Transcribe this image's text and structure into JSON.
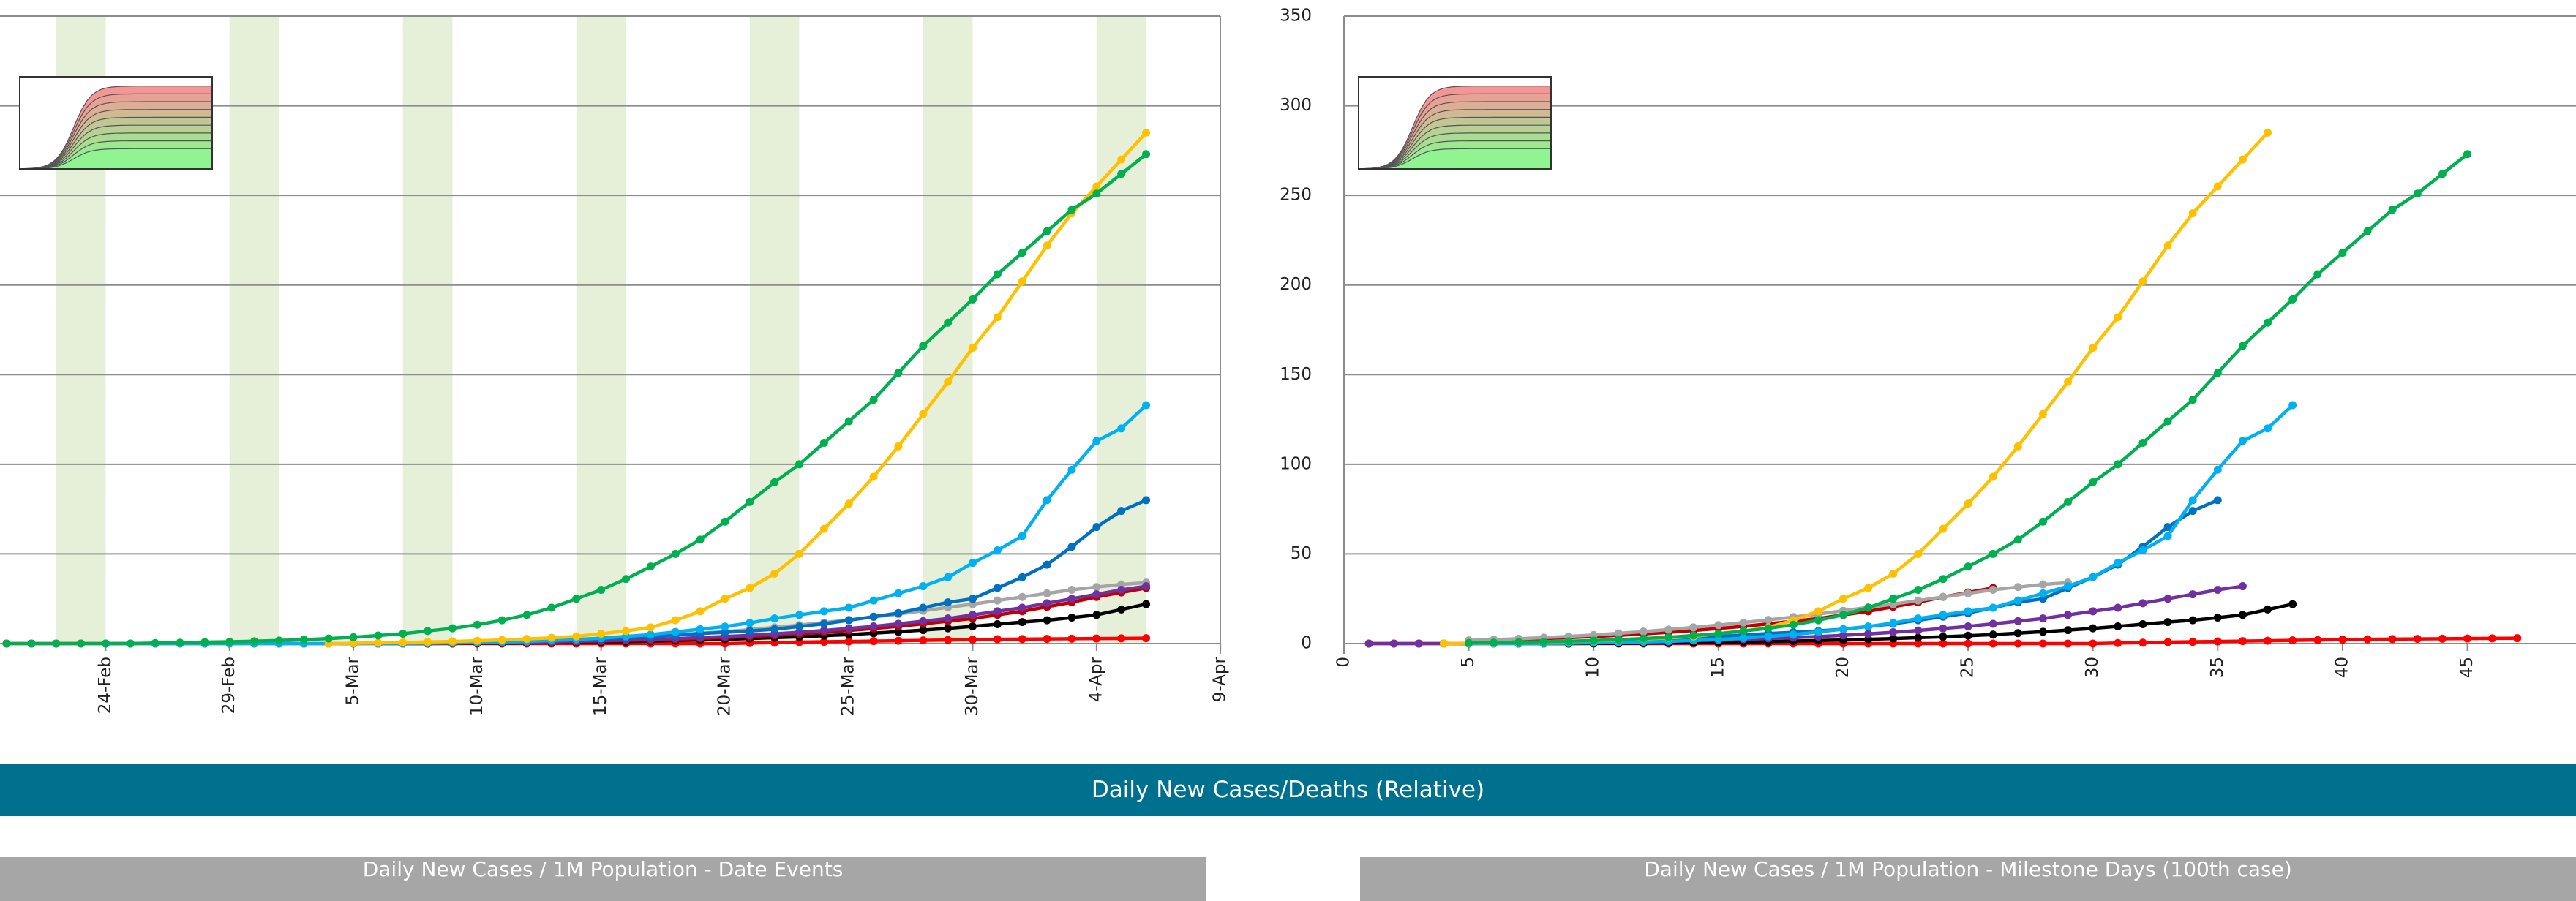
{
  "chart_data": [
    {
      "type": "line",
      "categories": [
        null,
        null,
        null,
        null,
        "24-Feb",
        null,
        null,
        null,
        null,
        "29-Feb",
        null,
        null,
        null,
        null,
        "5-Mar",
        null,
        null,
        null,
        null,
        "10-Mar",
        null,
        null,
        null,
        null,
        "15-Mar",
        null,
        null,
        null,
        null,
        "20-Mar",
        null,
        null,
        null,
        null,
        "25-Mar",
        null,
        null,
        null,
        null,
        "30-Mar",
        null,
        null,
        null,
        null,
        "4-Apr",
        null,
        null,
        null,
        null,
        "9-Apr"
      ],
      "ylim": [
        0,
        350
      ],
      "yticks": [
        0,
        50,
        100,
        150,
        200,
        250,
        300,
        350
      ],
      "grid": true,
      "series": [
        {
          "color": "#ff0000",
          "values": [
            0,
            0,
            0,
            0,
            0,
            0,
            0,
            0,
            0,
            0,
            0,
            0,
            0,
            0,
            0,
            0,
            0,
            0,
            0,
            0,
            0,
            0,
            0,
            0,
            0,
            0,
            0,
            0,
            0,
            0,
            0.3,
            0.5,
            0.8,
            1,
            1.2,
            1.4,
            1.6,
            1.8,
            2,
            2.2,
            2.4,
            2.5,
            2.6,
            2.7,
            2.8,
            2.9,
            3,
            null,
            null,
            null
          ]
        },
        {
          "color": "#000000",
          "values": [
            null,
            null,
            null,
            null,
            null,
            null,
            null,
            null,
            null,
            null,
            null,
            null,
            null,
            null,
            null,
            0,
            0,
            0,
            0.1,
            0.2,
            0.3,
            0.4,
            0.5,
            0.7,
            0.9,
            1.1,
            1.4,
            1.7,
            2,
            2.4,
            2.8,
            3.3,
            3.8,
            4.4,
            5,
            5.8,
            6.6,
            7.5,
            8.5,
            9.6,
            10.8,
            12,
            13,
            14.5,
            16,
            19,
            22,
            null,
            null,
            null
          ]
        },
        {
          "color": "#c00000",
          "values": [
            null,
            null,
            null,
            null,
            null,
            null,
            null,
            null,
            null,
            null,
            null,
            null,
            null,
            null,
            null,
            0,
            0,
            0.1,
            0.2,
            0.3,
            0.5,
            0.7,
            0.9,
            1.1,
            1.4,
            1.7,
            2,
            2.4,
            2.8,
            3.3,
            3.9,
            4.6,
            5.4,
            6.3,
            7.3,
            8.4,
            9.6,
            11,
            12.5,
            14,
            16,
            18,
            20.5,
            23,
            26,
            28.5,
            31,
            null,
            null,
            null
          ]
        },
        {
          "color": "#a5a5a5",
          "values": [
            null,
            null,
            null,
            null,
            null,
            null,
            null,
            null,
            null,
            null,
            null,
            null,
            null,
            null,
            null,
            0,
            0.2,
            0.4,
            0.6,
            0.8,
            1.1,
            1.4,
            1.8,
            2.2,
            2.7,
            3.3,
            4,
            4.8,
            5.7,
            6.7,
            7.8,
            9,
            10.3,
            11.7,
            13.2,
            14.8,
            16.5,
            18.3,
            20.2,
            22,
            24,
            26,
            28,
            30,
            31.5,
            33,
            34,
            null,
            null,
            null
          ]
        },
        {
          "color": "#7030a0",
          "values": [
            null,
            null,
            null,
            null,
            null,
            null,
            null,
            null,
            null,
            null,
            null,
            null,
            null,
            null,
            null,
            0,
            0.1,
            0.2,
            0.3,
            0.5,
            0.7,
            0.9,
            1.1,
            1.4,
            1.7,
            2,
            2.4,
            2.8,
            3.3,
            3.9,
            4.6,
            5.4,
            6.3,
            7.3,
            8.4,
            9.6,
            11,
            12.5,
            14,
            16,
            18,
            20,
            22.5,
            25,
            27.5,
            30,
            32,
            null,
            null,
            null
          ]
        },
        {
          "color": "#0070c0",
          "values": [
            null,
            null,
            null,
            null,
            null,
            null,
            null,
            null,
            null,
            null,
            null,
            null,
            null,
            null,
            null,
            0,
            0.2,
            0.4,
            0.6,
            0.8,
            1,
            1.3,
            1.7,
            2.2,
            2.8,
            3.4,
            4,
            4.8,
            5.6,
            6.3,
            7,
            8,
            9.5,
            11,
            13,
            15,
            17,
            20,
            23,
            25,
            31,
            37,
            44,
            54,
            65,
            74,
            80,
            null,
            null,
            null
          ]
        },
        {
          "color": "#00b0f0",
          "values": [
            null,
            null,
            null,
            null,
            0,
            0,
            0,
            0,
            0,
            0,
            0,
            0,
            0,
            0,
            0,
            0,
            0,
            0.2,
            0.4,
            0.6,
            0.9,
            1.2,
            1.7,
            2.3,
            3,
            4,
            5,
            6.5,
            8,
            9.5,
            11.5,
            14,
            16,
            18,
            20,
            24,
            28,
            32,
            37,
            45,
            52,
            60,
            80,
            97,
            113,
            120,
            133,
            null,
            null,
            null
          ]
        },
        {
          "color": "#ffc000",
          "values": [
            null,
            null,
            null,
            null,
            null,
            null,
            null,
            null,
            null,
            null,
            null,
            null,
            null,
            0,
            0.2,
            0.4,
            0.6,
            0.9,
            1.2,
            1.6,
            2,
            2.6,
            3.2,
            4,
            5.5,
            7,
            9,
            13,
            18,
            25,
            31,
            39,
            50,
            64,
            78,
            93,
            110,
            128,
            146,
            165,
            182,
            202,
            222,
            240,
            255,
            270,
            285,
            null,
            null,
            null
          ]
        },
        {
          "color": "#00b050",
          "values": [
            0,
            0,
            0,
            0,
            0,
            0,
            0.3,
            0.5,
            0.8,
            1,
            1.3,
            1.7,
            2.2,
            2.8,
            3.5,
            4.5,
            5.5,
            7,
            8.5,
            10.5,
            13,
            16,
            20,
            25,
            30,
            36,
            43,
            50,
            58,
            68,
            79,
            90,
            100,
            112,
            124,
            136,
            151,
            166,
            179,
            192,
            206,
            218,
            230,
            242,
            251,
            262,
            273,
            null,
            null,
            null
          ]
        }
      ]
    },
    {
      "type": "line",
      "x": [
        0,
        1,
        2,
        3,
        4,
        5,
        6,
        7,
        8,
        9,
        10,
        11,
        12,
        13,
        14,
        15,
        16,
        17,
        18,
        19,
        20,
        21,
        22,
        23,
        24,
        25,
        26,
        27,
        28,
        29,
        30,
        31,
        32,
        33,
        34,
        35,
        36,
        37,
        38,
        39,
        40,
        41,
        42,
        43,
        44,
        45,
        46,
        47
      ],
      "xlim": [
        0,
        49
      ],
      "xticks": [
        0,
        5,
        10,
        15,
        20,
        25,
        30,
        35,
        40,
        45
      ],
      "ylim": [
        0,
        350
      ],
      "yticks": [
        0,
        50,
        100,
        150,
        200,
        250,
        300,
        350
      ],
      "grid": true,
      "series": [
        {
          "color": "#ff0000",
          "values": [
            null,
            0,
            0,
            0,
            0,
            0,
            0,
            0,
            0,
            0,
            0,
            0,
            0,
            0,
            0,
            0,
            0,
            0,
            0,
            0,
            0,
            0,
            0,
            0,
            0,
            0,
            0,
            0,
            0,
            0,
            0,
            0.3,
            0.5,
            0.8,
            1,
            1.2,
            1.4,
            1.6,
            1.8,
            2,
            2.2,
            2.4,
            2.5,
            2.6,
            2.7,
            2.8,
            2.9,
            3
          ]
        },
        {
          "color": "#000000",
          "values": [
            null,
            null,
            null,
            null,
            null,
            null,
            null,
            0,
            0,
            0,
            0.1,
            0.2,
            0.3,
            0.4,
            0.5,
            0.7,
            0.9,
            1.1,
            1.4,
            1.7,
            2,
            2.4,
            2.8,
            3.3,
            3.8,
            4.4,
            5,
            5.8,
            6.6,
            7.5,
            8.5,
            9.6,
            10.8,
            12,
            13,
            14.5,
            16,
            19,
            22,
            null,
            null,
            null,
            null,
            null,
            null,
            null,
            null,
            null
          ]
        },
        {
          "color": "#c00000",
          "values": [
            null,
            null,
            null,
            null,
            null,
            1.7,
            2,
            2.4,
            2.8,
            3.3,
            3.9,
            4.6,
            5.4,
            6.3,
            7.3,
            8.4,
            9.6,
            11,
            12.5,
            14,
            16,
            18,
            20.5,
            23,
            26,
            28.5,
            31,
            null,
            null,
            null,
            null,
            null,
            null,
            null,
            null,
            null,
            null,
            null,
            null,
            null,
            null,
            null,
            null,
            null,
            null,
            null,
            null,
            null
          ]
        },
        {
          "color": "#a5a5a5",
          "values": [
            null,
            null,
            null,
            null,
            null,
            1.8,
            2.2,
            2.7,
            3.3,
            4,
            4.8,
            5.7,
            6.7,
            7.8,
            9,
            10.3,
            11.7,
            13.2,
            14.8,
            16.5,
            18.3,
            20.2,
            22,
            24,
            26,
            28,
            30,
            31.5,
            33,
            34,
            null,
            null,
            null,
            null,
            null,
            null,
            null,
            null,
            null,
            null,
            null,
            null,
            null,
            null,
            null,
            null,
            null,
            null
          ]
        },
        {
          "color": "#7030a0",
          "values": [
            null,
            0,
            0,
            0,
            0,
            0,
            0.1,
            0.2,
            0.3,
            0.5,
            0.7,
            0.9,
            1.1,
            1.4,
            1.7,
            2,
            2.4,
            2.8,
            3.3,
            3.9,
            4.6,
            5.4,
            6.3,
            7.3,
            8.4,
            9.6,
            11,
            12.5,
            14,
            16,
            18,
            20,
            22.5,
            25,
            27.5,
            30,
            32,
            null,
            null,
            null,
            null,
            null,
            null,
            null,
            null,
            null,
            null,
            null
          ]
        },
        {
          "color": "#0070c0",
          "values": [
            null,
            null,
            null,
            null,
            null,
            0.2,
            0.4,
            0.6,
            0.8,
            1,
            1.3,
            1.7,
            2.2,
            2.8,
            3.4,
            4,
            4.8,
            5.6,
            6.3,
            7,
            8,
            9.5,
            11,
            13,
            15,
            17,
            20,
            23,
            25,
            31,
            37,
            44,
            54,
            65,
            74,
            80,
            null,
            null,
            null,
            null,
            null,
            null,
            null,
            null,
            null,
            null,
            null,
            null
          ]
        },
        {
          "color": "#00b0f0",
          "values": [
            null,
            null,
            null,
            null,
            null,
            0,
            0,
            0,
            0,
            0.2,
            0.4,
            0.6,
            0.9,
            1.2,
            1.7,
            2.3,
            3,
            4,
            5,
            6.5,
            8,
            9.5,
            11.5,
            14,
            16,
            18,
            20,
            24,
            28,
            32,
            37,
            45,
            52,
            60,
            80,
            97,
            113,
            120,
            133,
            null,
            null,
            null,
            null,
            null,
            null,
            null,
            null,
            null
          ]
        },
        {
          "color": "#ffc000",
          "values": [
            null,
            null,
            null,
            null,
            0,
            0.2,
            0.4,
            0.6,
            0.9,
            1.2,
            1.6,
            2,
            2.6,
            3.2,
            4,
            5.5,
            7,
            9,
            13,
            18,
            25,
            31,
            39,
            50,
            64,
            78,
            93,
            110,
            128,
            146,
            165,
            182,
            202,
            222,
            240,
            255,
            270,
            285,
            null,
            null,
            null,
            null,
            null,
            null,
            null,
            null,
            null,
            null
          ]
        },
        {
          "color": "#00b050",
          "values": [
            null,
            null,
            null,
            null,
            null,
            0.3,
            0.5,
            0.8,
            1,
            1.3,
            1.7,
            2.2,
            2.8,
            3.5,
            4.5,
            5.5,
            7,
            8.5,
            10.5,
            13,
            16,
            20,
            25,
            30,
            36,
            43,
            50,
            58,
            68,
            79,
            90,
            100,
            112,
            124,
            136,
            151,
            166,
            179,
            192,
            206,
            218,
            230,
            242,
            251,
            262,
            273,
            null,
            null
          ]
        }
      ]
    }
  ],
  "section_title": "Daily New Cases/Deaths (Relative)",
  "panel_titles": [
    "Daily New Cases / 1M Population - Date Events",
    "Daily New Cases / 1M Population - Milestone Days (100th case)"
  ]
}
